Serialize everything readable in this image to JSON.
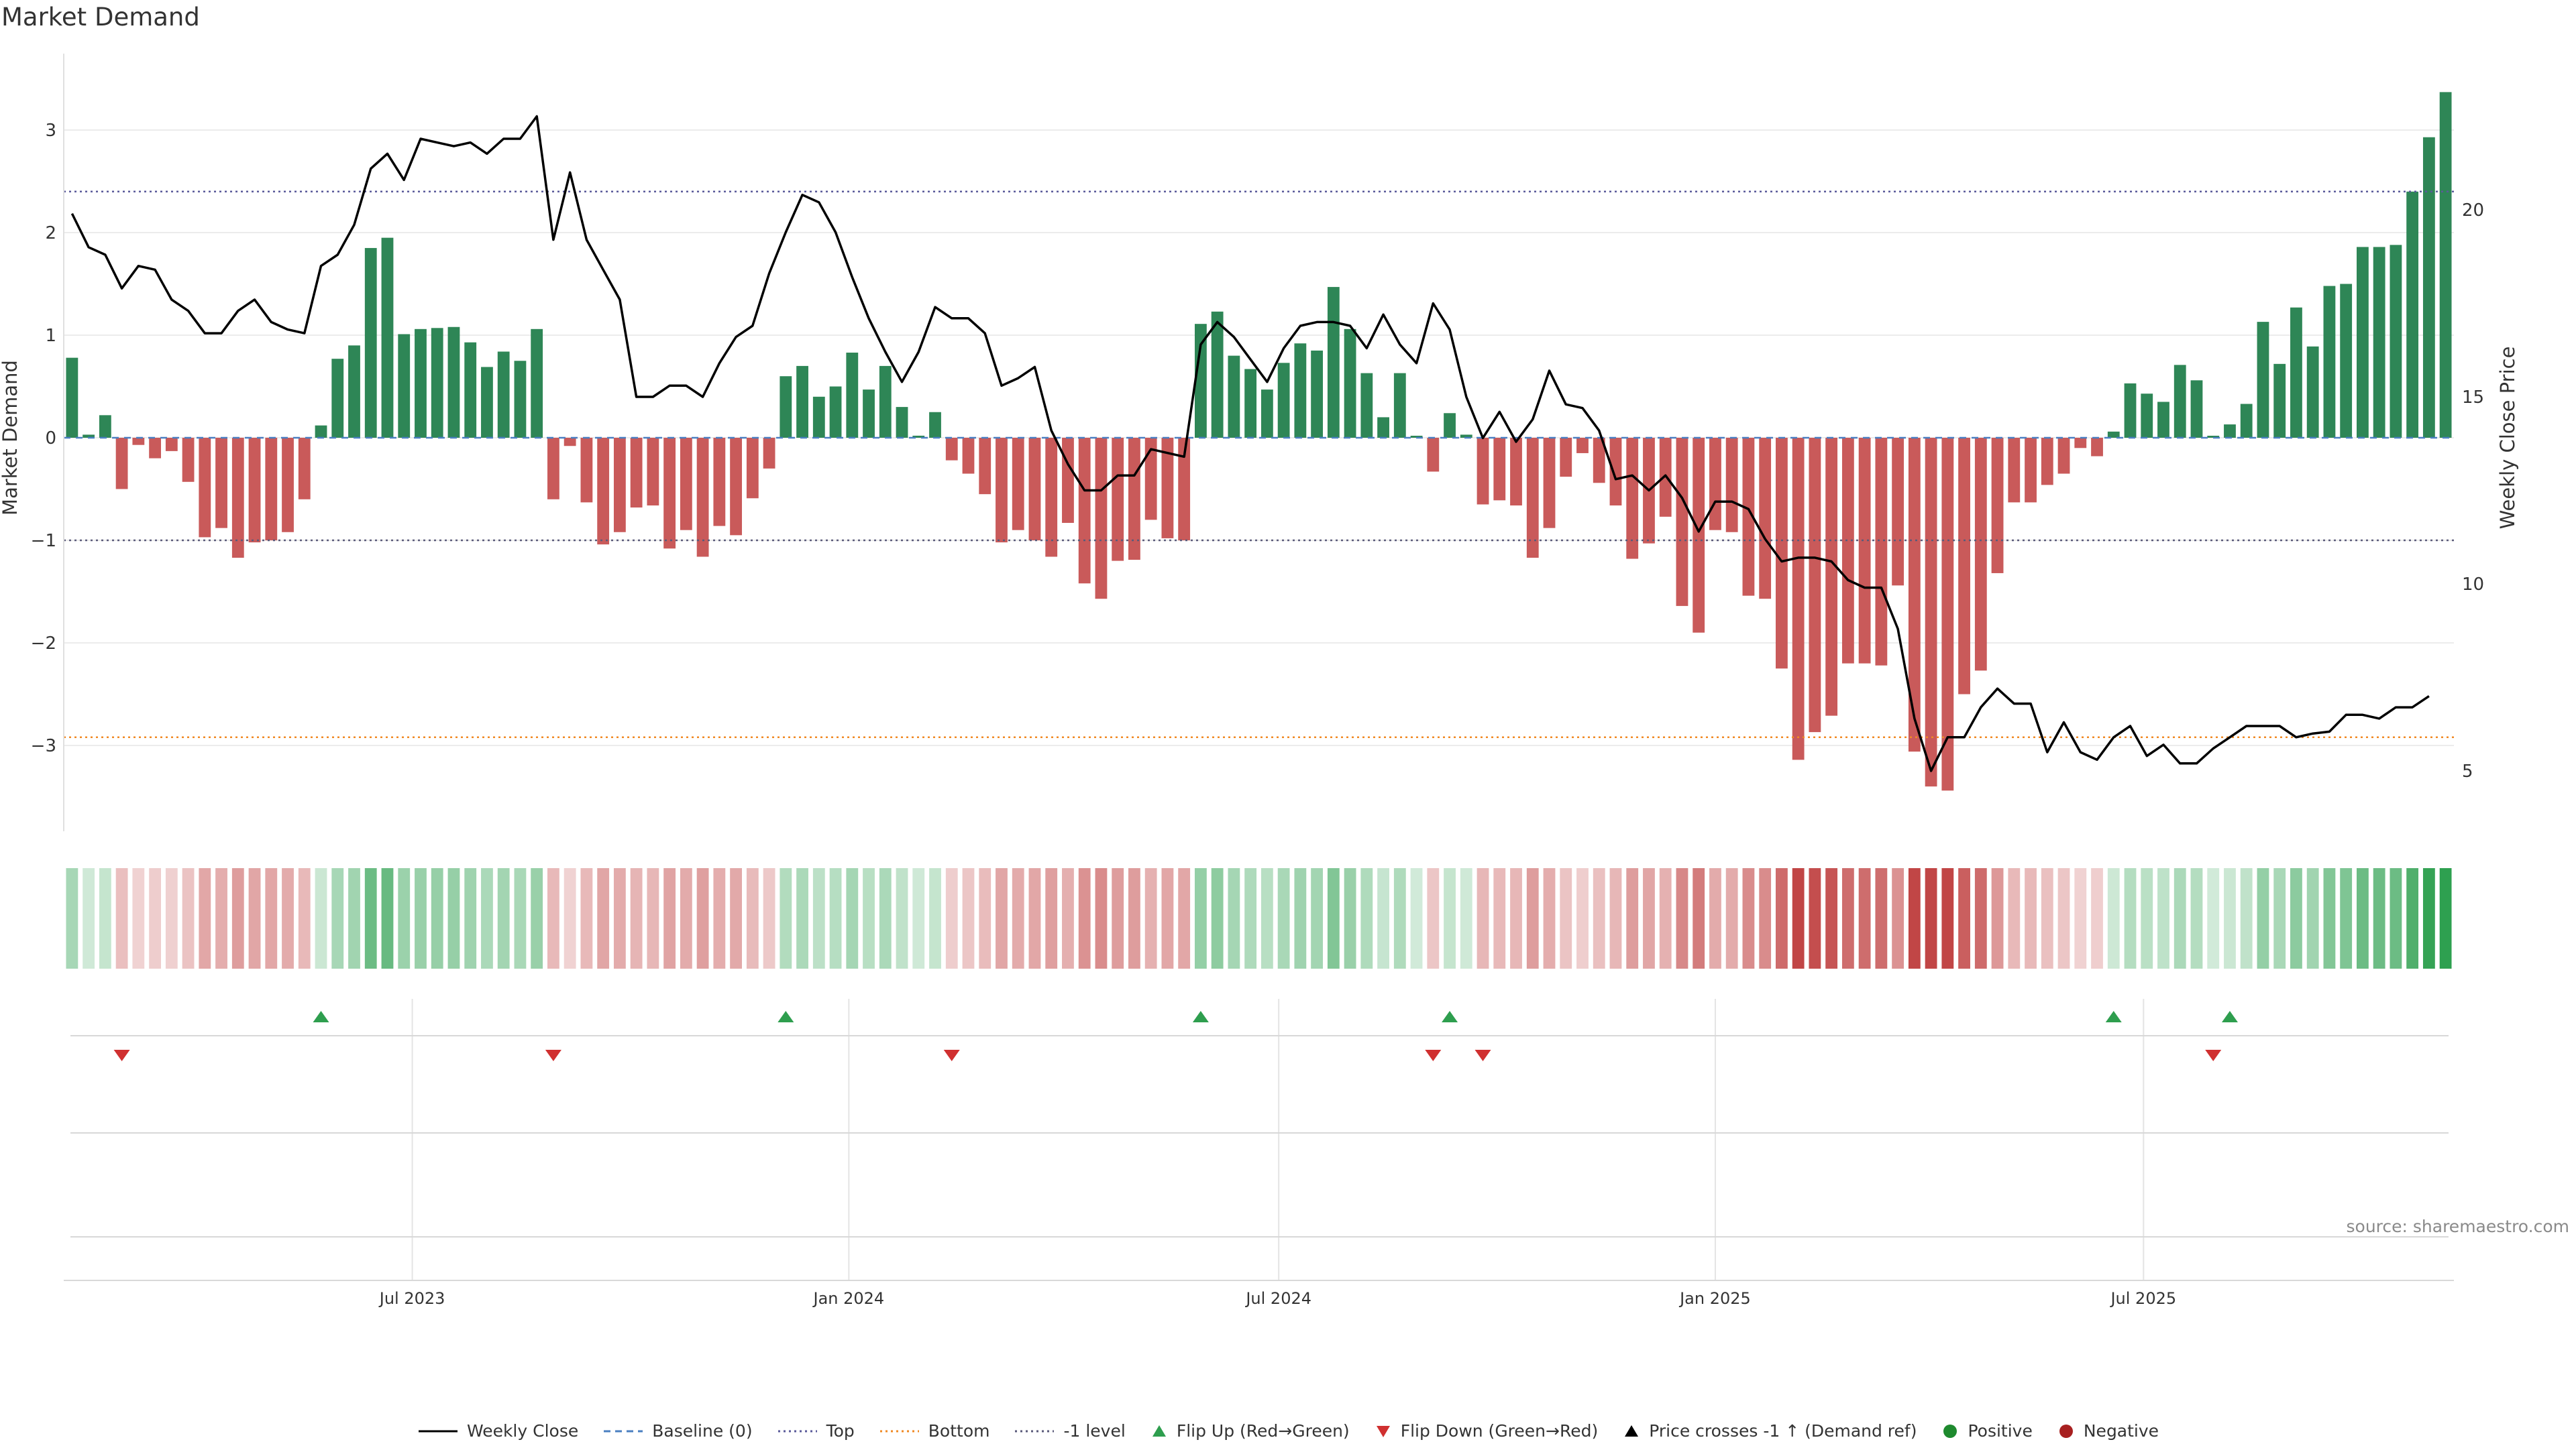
{
  "title": "Market Demand",
  "source": "source: sharemaestro.com",
  "legend": [
    {
      "label": "Weekly Close",
      "kind": "line",
      "color": "#000000"
    },
    {
      "label": "Baseline (0)",
      "kind": "dash",
      "color": "#4a7fc1"
    },
    {
      "label": "Top",
      "kind": "dot",
      "color": "#5a5a9a"
    },
    {
      "label": "Bottom",
      "kind": "dot",
      "color": "#f08a24"
    },
    {
      "label": "-1 level",
      "kind": "dot",
      "color": "#5a5a7a"
    },
    {
      "label": "Flip Up (Red→Green)",
      "kind": "tri-up",
      "color": "#2e9e4e"
    },
    {
      "label": "Flip Down (Green→Red)",
      "kind": "tri-down",
      "color": "#d03030"
    },
    {
      "label": "Price crosses -1 ↑ (Demand ref)",
      "kind": "tri-up",
      "color": "#000000"
    },
    {
      "label": "Positive",
      "kind": "circle",
      "color": "#1e8a2e"
    },
    {
      "label": "Negative",
      "kind": "circle",
      "color": "#a82020"
    }
  ],
  "chart_data": {
    "type": "bar",
    "title": "Market Demand",
    "ylabel": "Market Demand",
    "y2label": "Weekly Close Price",
    "ylim": [
      -3.8,
      3.8
    ],
    "y2lim": [
      3.7,
      24.5
    ],
    "yticks": [
      -3,
      -2,
      -1,
      0,
      1,
      2,
      3
    ],
    "y2ticks": [
      5,
      10,
      15,
      20
    ],
    "x_tick_labels": [
      {
        "label": "Jul 2023",
        "week": 20.5
      },
      {
        "label": "Jan 2024",
        "week": 46.8
      },
      {
        "label": "Jul 2024",
        "week": 72.7
      },
      {
        "label": "Jan 2025",
        "week": 99.0
      },
      {
        "label": "Jul 2025",
        "week": 124.8
      }
    ],
    "reference_lines": {
      "top": 2.4,
      "bottom": -2.92,
      "minus_one": -1,
      "baseline": 0
    },
    "series": [
      {
        "name": "Market Demand",
        "values": [
          0.78,
          0.03,
          0.22,
          -0.5,
          -0.07,
          -0.2,
          -0.13,
          -0.43,
          -0.97,
          -0.88,
          -1.17,
          -1.02,
          -1.0,
          -0.92,
          -0.6,
          0.12,
          0.77,
          0.9,
          1.85,
          1.95,
          1.01,
          1.06,
          1.07,
          1.08,
          0.93,
          0.69,
          0.84,
          0.75,
          1.06,
          -0.6,
          -0.08,
          -0.63,
          -1.04,
          -0.92,
          -0.68,
          -0.66,
          -1.08,
          -0.9,
          -1.16,
          -0.86,
          -0.95,
          -0.59,
          -0.3,
          0.6,
          0.7,
          0.4,
          0.5,
          0.83,
          0.47,
          0.7,
          0.3,
          0.02,
          0.25,
          -0.22,
          -0.35,
          -0.55,
          -1.02,
          -0.9,
          -1.0,
          -1.16,
          -0.83,
          -1.42,
          -1.57,
          -1.2,
          -1.19,
          -0.8,
          -0.98,
          -1.0,
          1.11,
          1.23,
          0.8,
          0.67,
          0.47,
          0.73,
          0.92,
          0.85,
          1.47,
          1.06,
          0.63,
          0.2,
          0.63,
          0.0,
          -0.33,
          0.24,
          0.03,
          -0.65,
          -0.61,
          -0.66,
          -1.17,
          -0.88,
          -0.38,
          -0.15,
          -0.44,
          -0.66,
          -1.18,
          -1.03,
          -0.77,
          -1.64,
          -1.9,
          -0.9,
          -0.92,
          -1.54,
          -1.57,
          -2.25,
          -3.14,
          -2.87,
          -2.71,
          -2.2,
          -2.2,
          -2.22,
          -1.44,
          -3.06,
          -3.4,
          -3.44,
          -2.5,
          -2.27,
          -1.32,
          -0.63,
          -0.63,
          -0.46,
          -0.35,
          -0.1,
          -0.18,
          0.06,
          0.53,
          0.43,
          0.35,
          0.71,
          0.56,
          0.0,
          0.13,
          0.33,
          1.13,
          0.72,
          1.27,
          0.89,
          1.48,
          1.5,
          1.86,
          1.86,
          1.88,
          2.4,
          2.93,
          3.37
        ]
      },
      {
        "name": "Weekly Close",
        "values": [
          19.9,
          19.0,
          18.8,
          17.9,
          18.5,
          18.4,
          17.6,
          17.3,
          16.7,
          16.7,
          17.3,
          17.6,
          17.0,
          16.8,
          16.7,
          18.5,
          18.8,
          19.6,
          21.1,
          21.5,
          20.8,
          21.9,
          21.8,
          21.7,
          21.8,
          21.5,
          21.9,
          21.9,
          22.5,
          19.2,
          21.0,
          19.2,
          18.4,
          17.6,
          15.0,
          15.0,
          15.3,
          15.3,
          15.0,
          15.9,
          16.6,
          16.9,
          18.3,
          19.4,
          20.4,
          20.2,
          19.4,
          18.2,
          17.1,
          16.2,
          15.4,
          16.2,
          17.4,
          17.1,
          17.1,
          16.7,
          15.3,
          15.5,
          15.8,
          14.1,
          13.2,
          12.5,
          12.5,
          12.9,
          12.9,
          13.6,
          13.5,
          13.4,
          16.4,
          17.0,
          16.6,
          16.0,
          15.4,
          16.3,
          16.9,
          17.0,
          17.0,
          16.9,
          16.3,
          17.2,
          16.4,
          15.9,
          17.5,
          16.8,
          15.0,
          13.9,
          14.6,
          13.8,
          14.4,
          15.7,
          14.8,
          14.7,
          14.1,
          12.8,
          12.9,
          12.5,
          12.9,
          12.3,
          11.4,
          12.2,
          12.2,
          12.0,
          11.2,
          10.6,
          10.7,
          10.7,
          10.6,
          10.1,
          9.9,
          9.9,
          8.8,
          6.4,
          5.0,
          5.9,
          5.9,
          6.7,
          7.2,
          6.8,
          6.8,
          5.5,
          6.3,
          5.5,
          5.3,
          5.9,
          6.2,
          5.4,
          5.7,
          5.2,
          5.2,
          5.6,
          5.9,
          6.2,
          6.2,
          6.2,
          5.9,
          6.0,
          6.05,
          6.5,
          6.5,
          6.4,
          6.7,
          6.7,
          7.0
        ]
      }
    ],
    "flip_up_weeks": [
      15,
      43,
      68,
      83,
      123,
      130
    ],
    "flip_down_weeks": [
      3,
      29,
      53,
      82,
      85,
      129
    ]
  }
}
